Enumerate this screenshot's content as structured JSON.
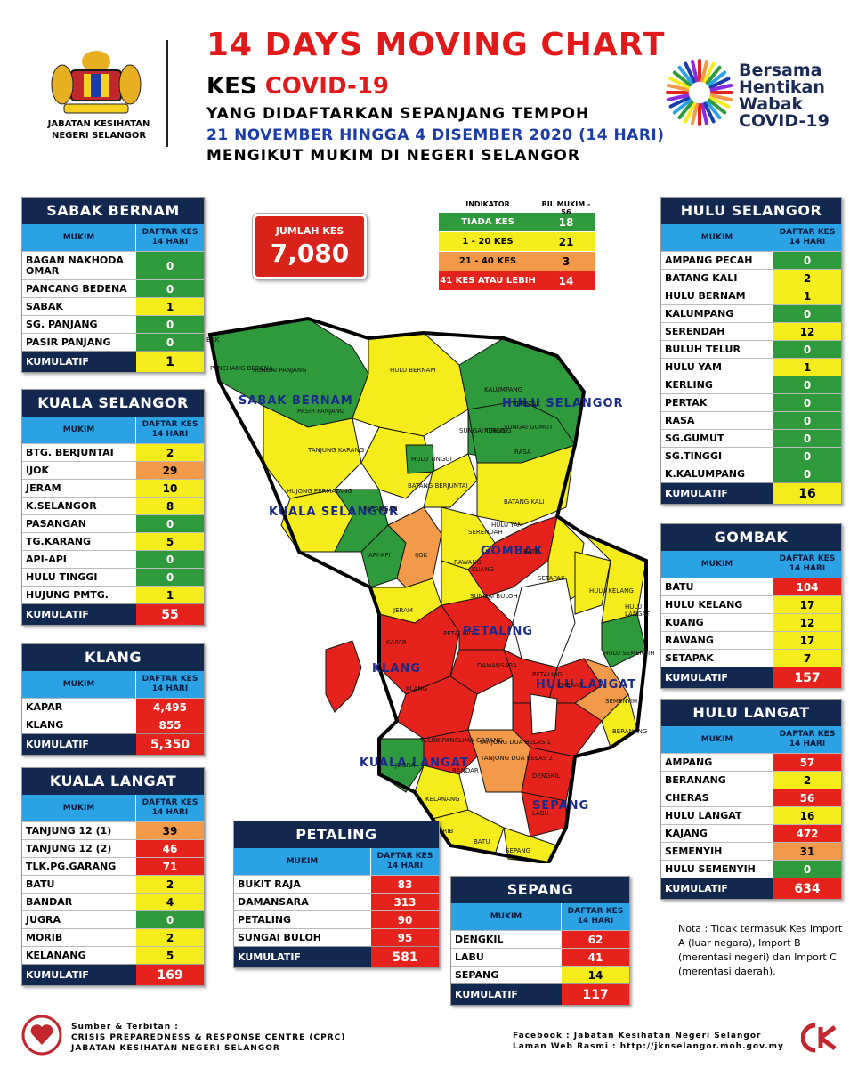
{
  "header": {
    "title": "14 DAYS MOVING CHART",
    "line2_prefix": "KES ",
    "line2_highlight": "COVID-19",
    "line3": "YANG DIDAFTARKAN SEPANJANG TEMPOH",
    "line4": "21 NOVEMBER HINGGA 4 DISEMBER 2020 (14 HARI)",
    "line5": "MENGIKUT MUKIM DI NEGERI SELANGOR",
    "dept": "JABATAN KESIHATAN NEGERI SELANGOR",
    "campaign": [
      "Bersama",
      "Hentikan",
      "Wabak",
      "COVID-19"
    ]
  },
  "jumlah": {
    "label": "JUMLAH KES",
    "value": "7,080"
  },
  "indicator": {
    "head_a": "INDIKATOR",
    "head_b": "BIL MUKIM - 56",
    "rows": [
      {
        "label": "TIADA KES",
        "count": "18",
        "color": "#2e9a3c"
      },
      {
        "label": "1 - 20 KES",
        "count": "21",
        "color": "#f5ec1c"
      },
      {
        "label": "21 - 40 KES",
        "count": "3",
        "color": "#f29a4a"
      },
      {
        "label": "41 KES ATAU LEBIH",
        "count": "14",
        "color": "#e5231c"
      }
    ]
  },
  "col_mukim": "MUKIM",
  "col_daftar": "DAFTAR KES 14 HARI",
  "kumulatif_label": "KUMULATIF",
  "tables": {
    "sabak": {
      "title": "SABAK BERNAM",
      "rows": [
        [
          "BAGAN NAKHODA OMAR",
          "0",
          "g"
        ],
        [
          "PANCANG BEDENA",
          "0",
          "g"
        ],
        [
          "SABAK",
          "1",
          "y"
        ],
        [
          "SG. PANJANG",
          "0",
          "g"
        ],
        [
          "PASIR PANJANG",
          "0",
          "g"
        ]
      ],
      "total": "1"
    },
    "kualasel": {
      "title": "KUALA SELANGOR",
      "rows": [
        [
          "BTG. BERJUNTAI",
          "2",
          "y"
        ],
        [
          "IJOK",
          "29",
          "o"
        ],
        [
          "JERAM",
          "10",
          "y"
        ],
        [
          "K.SELANGOR",
          "8",
          "y"
        ],
        [
          "PASANGAN",
          "0",
          "g"
        ],
        [
          "TG.KARANG",
          "5",
          "y"
        ],
        [
          "API-API",
          "0",
          "g"
        ],
        [
          "HULU TINGGI",
          "0",
          "g"
        ],
        [
          "HUJUNG PMTG.",
          "1",
          "y"
        ]
      ],
      "total": "55"
    },
    "klang": {
      "title": "KLANG",
      "rows": [
        [
          "KAPAR",
          "4,495",
          "rd"
        ],
        [
          "KLANG",
          "855",
          "rd"
        ]
      ],
      "total": "5,350"
    },
    "kualalangat": {
      "title": "KUALA LANGAT",
      "rows": [
        [
          "TANJUNG 12 (1)",
          "39",
          "o"
        ],
        [
          "TANJUNG 12 (2)",
          "46",
          "rd"
        ],
        [
          "TLK.PG.GARANG",
          "71",
          "rd"
        ],
        [
          "BATU",
          "2",
          "y"
        ],
        [
          "BANDAR",
          "4",
          "y"
        ],
        [
          "JUGRA",
          "0",
          "g"
        ],
        [
          "MORIB",
          "2",
          "y"
        ],
        [
          "KELANANG",
          "5",
          "y"
        ]
      ],
      "total": "169"
    },
    "petaling": {
      "title": "PETALING",
      "rows": [
        [
          "BUKIT RAJA",
          "83",
          "rd"
        ],
        [
          "DAMANSARA",
          "313",
          "rd"
        ],
        [
          "PETALING",
          "90",
          "rd"
        ],
        [
          "SUNGAI BULOH",
          "95",
          "rd"
        ]
      ],
      "total": "581"
    },
    "sepang": {
      "title": "SEPANG",
      "rows": [
        [
          "DENGKIL",
          "62",
          "rd"
        ],
        [
          "LABU",
          "41",
          "rd"
        ],
        [
          "SEPANG",
          "14",
          "y"
        ]
      ],
      "total": "117"
    },
    "huluselangor": {
      "title": "HULU SELANGOR",
      "rows": [
        [
          "AMPANG PECAH",
          "0",
          "g"
        ],
        [
          "BATANG KALI",
          "2",
          "y"
        ],
        [
          "HULU BERNAM",
          "1",
          "y"
        ],
        [
          "KALUMPANG",
          "0",
          "g"
        ],
        [
          "SERENDAH",
          "12",
          "y"
        ],
        [
          "BULUH TELUR",
          "0",
          "g"
        ],
        [
          "HULU YAM",
          "1",
          "y"
        ],
        [
          "KERLING",
          "0",
          "g"
        ],
        [
          "PERTAK",
          "0",
          "g"
        ],
        [
          "RASA",
          "0",
          "g"
        ],
        [
          "SG.GUMUT",
          "0",
          "g"
        ],
        [
          "SG.TINGGI",
          "0",
          "g"
        ],
        [
          "K.KALUMPANG",
          "0",
          "g"
        ]
      ],
      "total": "16"
    },
    "gombak": {
      "title": "GOMBAK",
      "rows": [
        [
          "BATU",
          "104",
          "rd"
        ],
        [
          "HULU KELANG",
          "17",
          "y"
        ],
        [
          "KUANG",
          "12",
          "y"
        ],
        [
          "RAWANG",
          "17",
          "y"
        ],
        [
          "SETAPAK",
          "7",
          "y"
        ]
      ],
      "total": "157"
    },
    "hululangat": {
      "title": "HULU LANGAT",
      "rows": [
        [
          "AMPANG",
          "57",
          "rd"
        ],
        [
          "BERANANG",
          "2",
          "y"
        ],
        [
          "CHERAS",
          "56",
          "rd"
        ],
        [
          "HULU LANGAT",
          "16",
          "y"
        ],
        [
          "KAJANG",
          "472",
          "rd"
        ],
        [
          "SEMENYIH",
          "31",
          "o"
        ],
        [
          "HULU SEMENYIH",
          "0",
          "g"
        ]
      ],
      "total": "634"
    }
  },
  "map": {
    "district_labels": [
      "SABAK BERNAM",
      "HULU SELANGOR",
      "KUALA SELANGOR",
      "GOMBAK",
      "PETALING",
      "KLANG",
      "HULU LANGAT",
      "KUALA LANGAT",
      "SEPANG"
    ],
    "mukim_labels": [
      "BAK",
      "PANCHANG BEDENA",
      "SUNGAI PANJANG",
      "PASIR PANJANG",
      "HULU BERNAM",
      "KALUMPANG",
      "PERETAK",
      "SUNGAI GUMUT",
      "KERLING",
      "RASA",
      "SUNGAI TINGGI",
      "HULU TINGGI",
      "TANJUNG KARANG",
      "BATANG BERJUNTAI",
      "HUJONG PERMATANG",
      "PASANGAN",
      "BATANG KALI",
      "HULU YAM",
      "SERENDAH",
      "RAWANG",
      "KUANG",
      "BATU",
      "SETAPAK",
      "API-API",
      "IJOK",
      "JERAM",
      "SUNGAI BULOH",
      "HULU KELANG",
      "HULU LANGAT",
      "KAPAR",
      "DAMANSARA",
      "KLANG",
      "CHERAS",
      "HULU SEMENYIH",
      "SEMENYIH",
      "TELOK PANGLIMA GARANG",
      "TANJONG DUA BELAS 1",
      "TANJONG DUA BELAS 2",
      "JUGRA",
      "BANDAR",
      "KELANANG",
      "DENGKIL",
      "MORIB",
      "LABU",
      "BERANANG",
      "BATU",
      "SEPANG",
      "PETALING",
      "PETALING"
    ]
  },
  "nota": "Nota : Tidak termasuk Kes Import A (luar negara), Import B (merentasi negeri) dan Import C (merentasi daerah).",
  "footer": {
    "left_title": "Sumber & Terbitan :",
    "left_1": "CRISIS PREPAREDNESS & RESPONSE CENTRE (CPRC)",
    "left_2": "JABATAN KESIHATAN NEGERI SELANGOR",
    "right_1": "Facebook : Jabatan Kesihatan Negeri Selangor",
    "right_2": "Laman Web Rasmi : http://jknselangor.moh.gov.my"
  }
}
